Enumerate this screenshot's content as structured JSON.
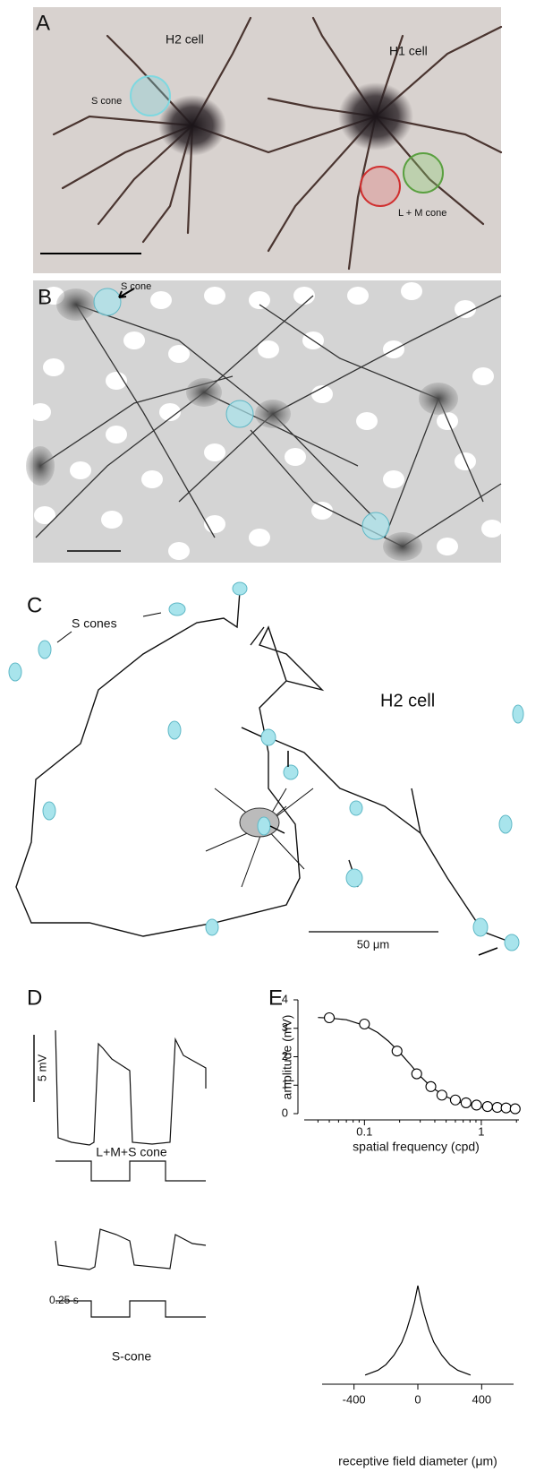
{
  "panels": {
    "A": {
      "label": "A",
      "h2": "H2 cell",
      "h1": "H1 cell",
      "s_cone": "S cone",
      "lm_cone": "L + M cone"
    },
    "B": {
      "label": "B",
      "s_cone": "S cone"
    },
    "C": {
      "label": "C",
      "s_cones": "S cones",
      "h2": "H2 cell",
      "scale": "50 μm"
    },
    "D": {
      "label": "D",
      "scale_v": "5 mV",
      "trace1": "L+M+S cone",
      "scale_t": "0.25 s",
      "trace2": "S-cone"
    },
    "E": {
      "label": "E",
      "tuning": {
        "type": "scatter",
        "y_label": "amplitude (mV)",
        "x_label": "spatial frequency (cpd)",
        "log_x": true,
        "x": [
          0.05,
          0.1,
          0.19,
          0.28,
          0.37,
          0.46,
          0.6,
          0.74,
          0.91,
          1.13,
          1.37,
          1.63,
          1.95
        ],
        "values": [
          3.37,
          3.15,
          2.2,
          1.4,
          0.95,
          0.65,
          0.48,
          0.38,
          0.3,
          0.25,
          0.22,
          0.2,
          0.17
        ],
        "fit": {
          "x": [
            0.04,
            0.05,
            0.07,
            0.1,
            0.13,
            0.16,
            0.2,
            0.25,
            0.3,
            0.35,
            0.4,
            0.5,
            0.6,
            0.8,
            1,
            1.3,
            1.6,
            2.0
          ],
          "values": [
            3.38,
            3.36,
            3.3,
            3.1,
            2.85,
            2.55,
            2.15,
            1.7,
            1.32,
            1.05,
            0.85,
            0.6,
            0.45,
            0.3,
            0.23,
            0.19,
            0.17,
            0.16
          ]
        },
        "xlim": [
          0.0305,
          2.1
        ],
        "ylim": [
          0,
          4
        ],
        "xticks": [
          0.1,
          1
        ],
        "yticks": [
          0,
          1,
          2,
          3,
          4
        ]
      },
      "profile": {
        "type": "line",
        "x_label": "receptive field diameter (μm)",
        "x": [
          -330,
          -250,
          -200,
          -150,
          -100,
          -70,
          -40,
          -20,
          0,
          20,
          40,
          70,
          100,
          150,
          200,
          250,
          330
        ],
        "values": [
          0.05,
          0.1,
          0.16,
          0.26,
          0.4,
          0.53,
          0.7,
          0.83,
          1,
          0.83,
          0.7,
          0.53,
          0.4,
          0.26,
          0.16,
          0.1,
          0.05
        ],
        "xlim": [
          -600,
          600
        ],
        "xticks": [
          -400,
          0,
          400
        ]
      }
    }
  }
}
